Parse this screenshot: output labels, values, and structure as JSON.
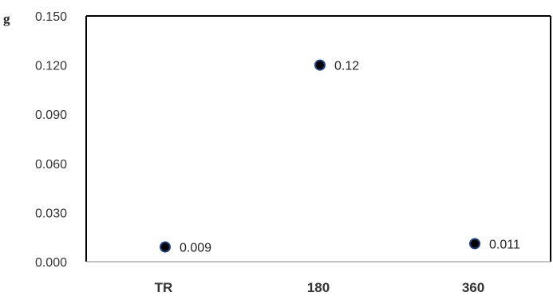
{
  "chart_data": {
    "type": "scatter",
    "ylabel": "g",
    "categories": [
      "TR",
      "180",
      "360"
    ],
    "values": [
      0.009,
      0.12,
      0.011
    ],
    "data_labels": [
      "0.009",
      "0.12",
      "0.011"
    ],
    "ylim": [
      0,
      0.15
    ],
    "y_ticks": [
      "0.000",
      "0.030",
      "0.060",
      "0.090",
      "0.120",
      "0.150"
    ],
    "grid": false,
    "legend": "none",
    "marker_color": "#000000",
    "marker_edge_color": "#1f3f7a"
  }
}
